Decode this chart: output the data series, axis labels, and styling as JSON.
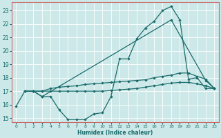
{
  "xlabel": "Humidex (Indice chaleur)",
  "bg_color": "#cce8e8",
  "line_color": "#1a6b6b",
  "frame_color": "#cc6666",
  "xlim": [
    -0.5,
    23.5
  ],
  "ylim": [
    14.7,
    23.6
  ],
  "xticks": [
    0,
    1,
    2,
    3,
    4,
    5,
    6,
    7,
    8,
    9,
    10,
    11,
    12,
    13,
    14,
    15,
    16,
    17,
    18,
    19,
    20,
    21,
    22,
    23
  ],
  "yticks": [
    15,
    16,
    17,
    18,
    19,
    20,
    21,
    22,
    23
  ],
  "grid_color": "#ffffff",
  "series": [
    {
      "x": [
        0,
        1,
        2,
        3,
        4,
        5,
        6,
        7,
        8,
        9,
        10,
        11,
        12,
        13,
        14,
        15,
        16,
        17,
        18,
        19,
        20,
        21,
        22,
        23
      ],
      "y": [
        15.9,
        17.0,
        17.0,
        16.6,
        16.6,
        15.6,
        14.9,
        14.9,
        14.9,
        15.3,
        15.4,
        16.6,
        19.4,
        19.4,
        20.9,
        21.7,
        22.2,
        23.0,
        23.3,
        22.3,
        17.9,
        18.0,
        17.2,
        17.2
      ]
    },
    {
      "x": [
        1,
        2,
        3,
        18,
        22,
        23
      ],
      "y": [
        17.0,
        17.0,
        16.6,
        22.3,
        17.8,
        17.2
      ]
    },
    {
      "x": [
        1,
        2,
        3,
        4,
        5,
        6,
        7,
        8,
        9,
        10,
        11,
        12,
        13,
        14,
        15,
        16,
        17,
        18,
        19,
        20,
        21,
        22,
        23
      ],
      "y": [
        17.0,
        17.0,
        17.0,
        17.2,
        17.3,
        17.35,
        17.4,
        17.5,
        17.55,
        17.6,
        17.65,
        17.7,
        17.75,
        17.8,
        17.85,
        18.0,
        18.1,
        18.2,
        18.35,
        18.35,
        18.1,
        17.9,
        17.2
      ]
    },
    {
      "x": [
        1,
        2,
        3,
        4,
        5,
        6,
        7,
        8,
        9,
        10,
        11,
        12,
        13,
        14,
        15,
        16,
        17,
        18,
        19,
        20,
        21,
        22,
        23
      ],
      "y": [
        17.0,
        17.0,
        17.0,
        17.0,
        17.0,
        17.0,
        17.0,
        17.0,
        17.0,
        17.0,
        17.05,
        17.1,
        17.15,
        17.2,
        17.3,
        17.4,
        17.5,
        17.6,
        17.65,
        17.65,
        17.55,
        17.4,
        17.2
      ]
    }
  ]
}
